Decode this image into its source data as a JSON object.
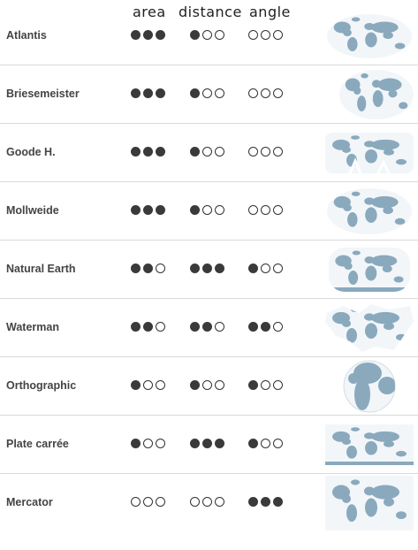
{
  "headers": {
    "area": "area",
    "distance": "distance",
    "angle": "angle"
  },
  "colors": {
    "land": "#8aa9bd",
    "ocean": "#f2f6f9",
    "dot": "#3a3a3a",
    "divider": "#d9d9d9"
  },
  "rows": [
    {
      "name": "Atlantis",
      "area": 3,
      "distance": 1,
      "angle": 0,
      "map": "atlantis"
    },
    {
      "name": "Briesemeister",
      "area": 3,
      "distance": 1,
      "angle": 0,
      "map": "briesemeister"
    },
    {
      "name": "Goode H.",
      "area": 3,
      "distance": 1,
      "angle": 0,
      "map": "goode"
    },
    {
      "name": "Mollweide",
      "area": 3,
      "distance": 1,
      "angle": 0,
      "map": "mollweide"
    },
    {
      "name": "Natural Earth",
      "area": 2,
      "distance": 3,
      "angle": 1,
      "map": "natural-earth"
    },
    {
      "name": "Waterman",
      "area": 2,
      "distance": 2,
      "angle": 2,
      "map": "waterman"
    },
    {
      "name": "Orthographic",
      "area": 1,
      "distance": 1,
      "angle": 1,
      "map": "orthographic"
    },
    {
      "name": "Plate carrée",
      "area": 1,
      "distance": 3,
      "angle": 1,
      "map": "plate-carree"
    },
    {
      "name": "Mercator",
      "area": 0,
      "distance": 0,
      "angle": 3,
      "map": "mercator"
    }
  ]
}
